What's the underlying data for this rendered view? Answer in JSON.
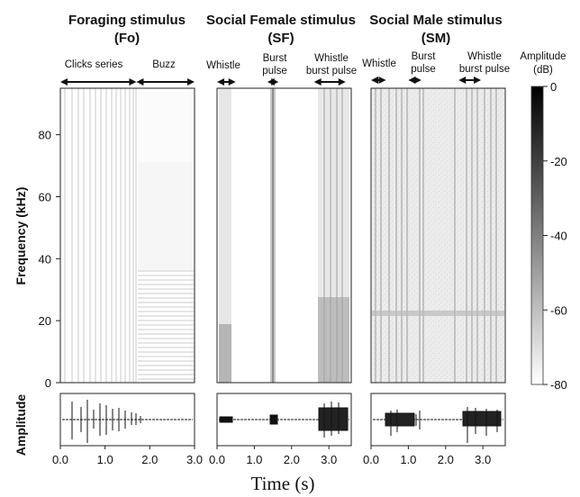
{
  "chart_data": {
    "type": "heatmap",
    "y_axis": {
      "label": "Frequency (kHz)",
      "ticks": [
        0,
        20,
        40,
        60,
        80
      ],
      "ylim": [
        0,
        95
      ]
    },
    "amplitude_label": "Amplitude",
    "xlabel": "Time (s)",
    "colorbar": {
      "title_line1": "Amplitude",
      "title_line2": "(dB)",
      "ticks": [
        0,
        -20,
        -40,
        -60,
        -80
      ],
      "range": [
        -80,
        0
      ],
      "colormap": "white-to-black",
      "color_low": "#ffffff",
      "color_high": "#000000"
    },
    "panels": [
      {
        "title_line1": "Foraging stimulus",
        "title_line2": "(Fo)",
        "x_ticks": [
          "0.0",
          "1.0",
          "2.0",
          "3.0"
        ],
        "x_tick_values": [
          0,
          1,
          2,
          3
        ],
        "xlim": [
          0,
          3.0
        ],
        "segments": [
          {
            "label_line1": "Clicks series",
            "label_line2": "",
            "start": 0.0,
            "end": 1.7
          },
          {
            "label_line1": "Buzz",
            "label_line2": "",
            "start": 1.7,
            "end": 3.0
          }
        ]
      },
      {
        "title_line1": "Social Female stimulus",
        "title_line2": "(SF)",
        "x_ticks": [
          "0.0",
          "1.0",
          "2.0",
          "3.0"
        ],
        "x_tick_values": [
          0,
          1,
          2,
          3
        ],
        "xlim": [
          0,
          3.6
        ],
        "segments": [
          {
            "label_line1": "Whistle",
            "label_line2": "",
            "start": 0.0,
            "end": 0.5
          },
          {
            "label_line1": "Burst",
            "label_line2": "pulse",
            "start": 1.35,
            "end": 1.65
          },
          {
            "label_line1": "Whistle",
            "label_line2": "burst pulse",
            "start": 2.6,
            "end": 3.45
          }
        ]
      },
      {
        "title_line1": "Social Male stimulus",
        "title_line2": "(SM)",
        "x_ticks": [
          "0.0",
          "1.0",
          "2.0",
          "3.0"
        ],
        "x_tick_values": [
          0,
          1,
          2,
          3
        ],
        "xlim": [
          0,
          3.6
        ],
        "segments": [
          {
            "label_line1": "Whistle",
            "label_line2": "",
            "start": 0.0,
            "end": 0.4
          },
          {
            "label_line1": "Burst",
            "label_line2": "pulse",
            "start": 1.0,
            "end": 1.35
          },
          {
            "label_line1": "Whistle",
            "label_line2": "burst pulse",
            "start": 2.35,
            "end": 2.95
          }
        ]
      }
    ]
  }
}
